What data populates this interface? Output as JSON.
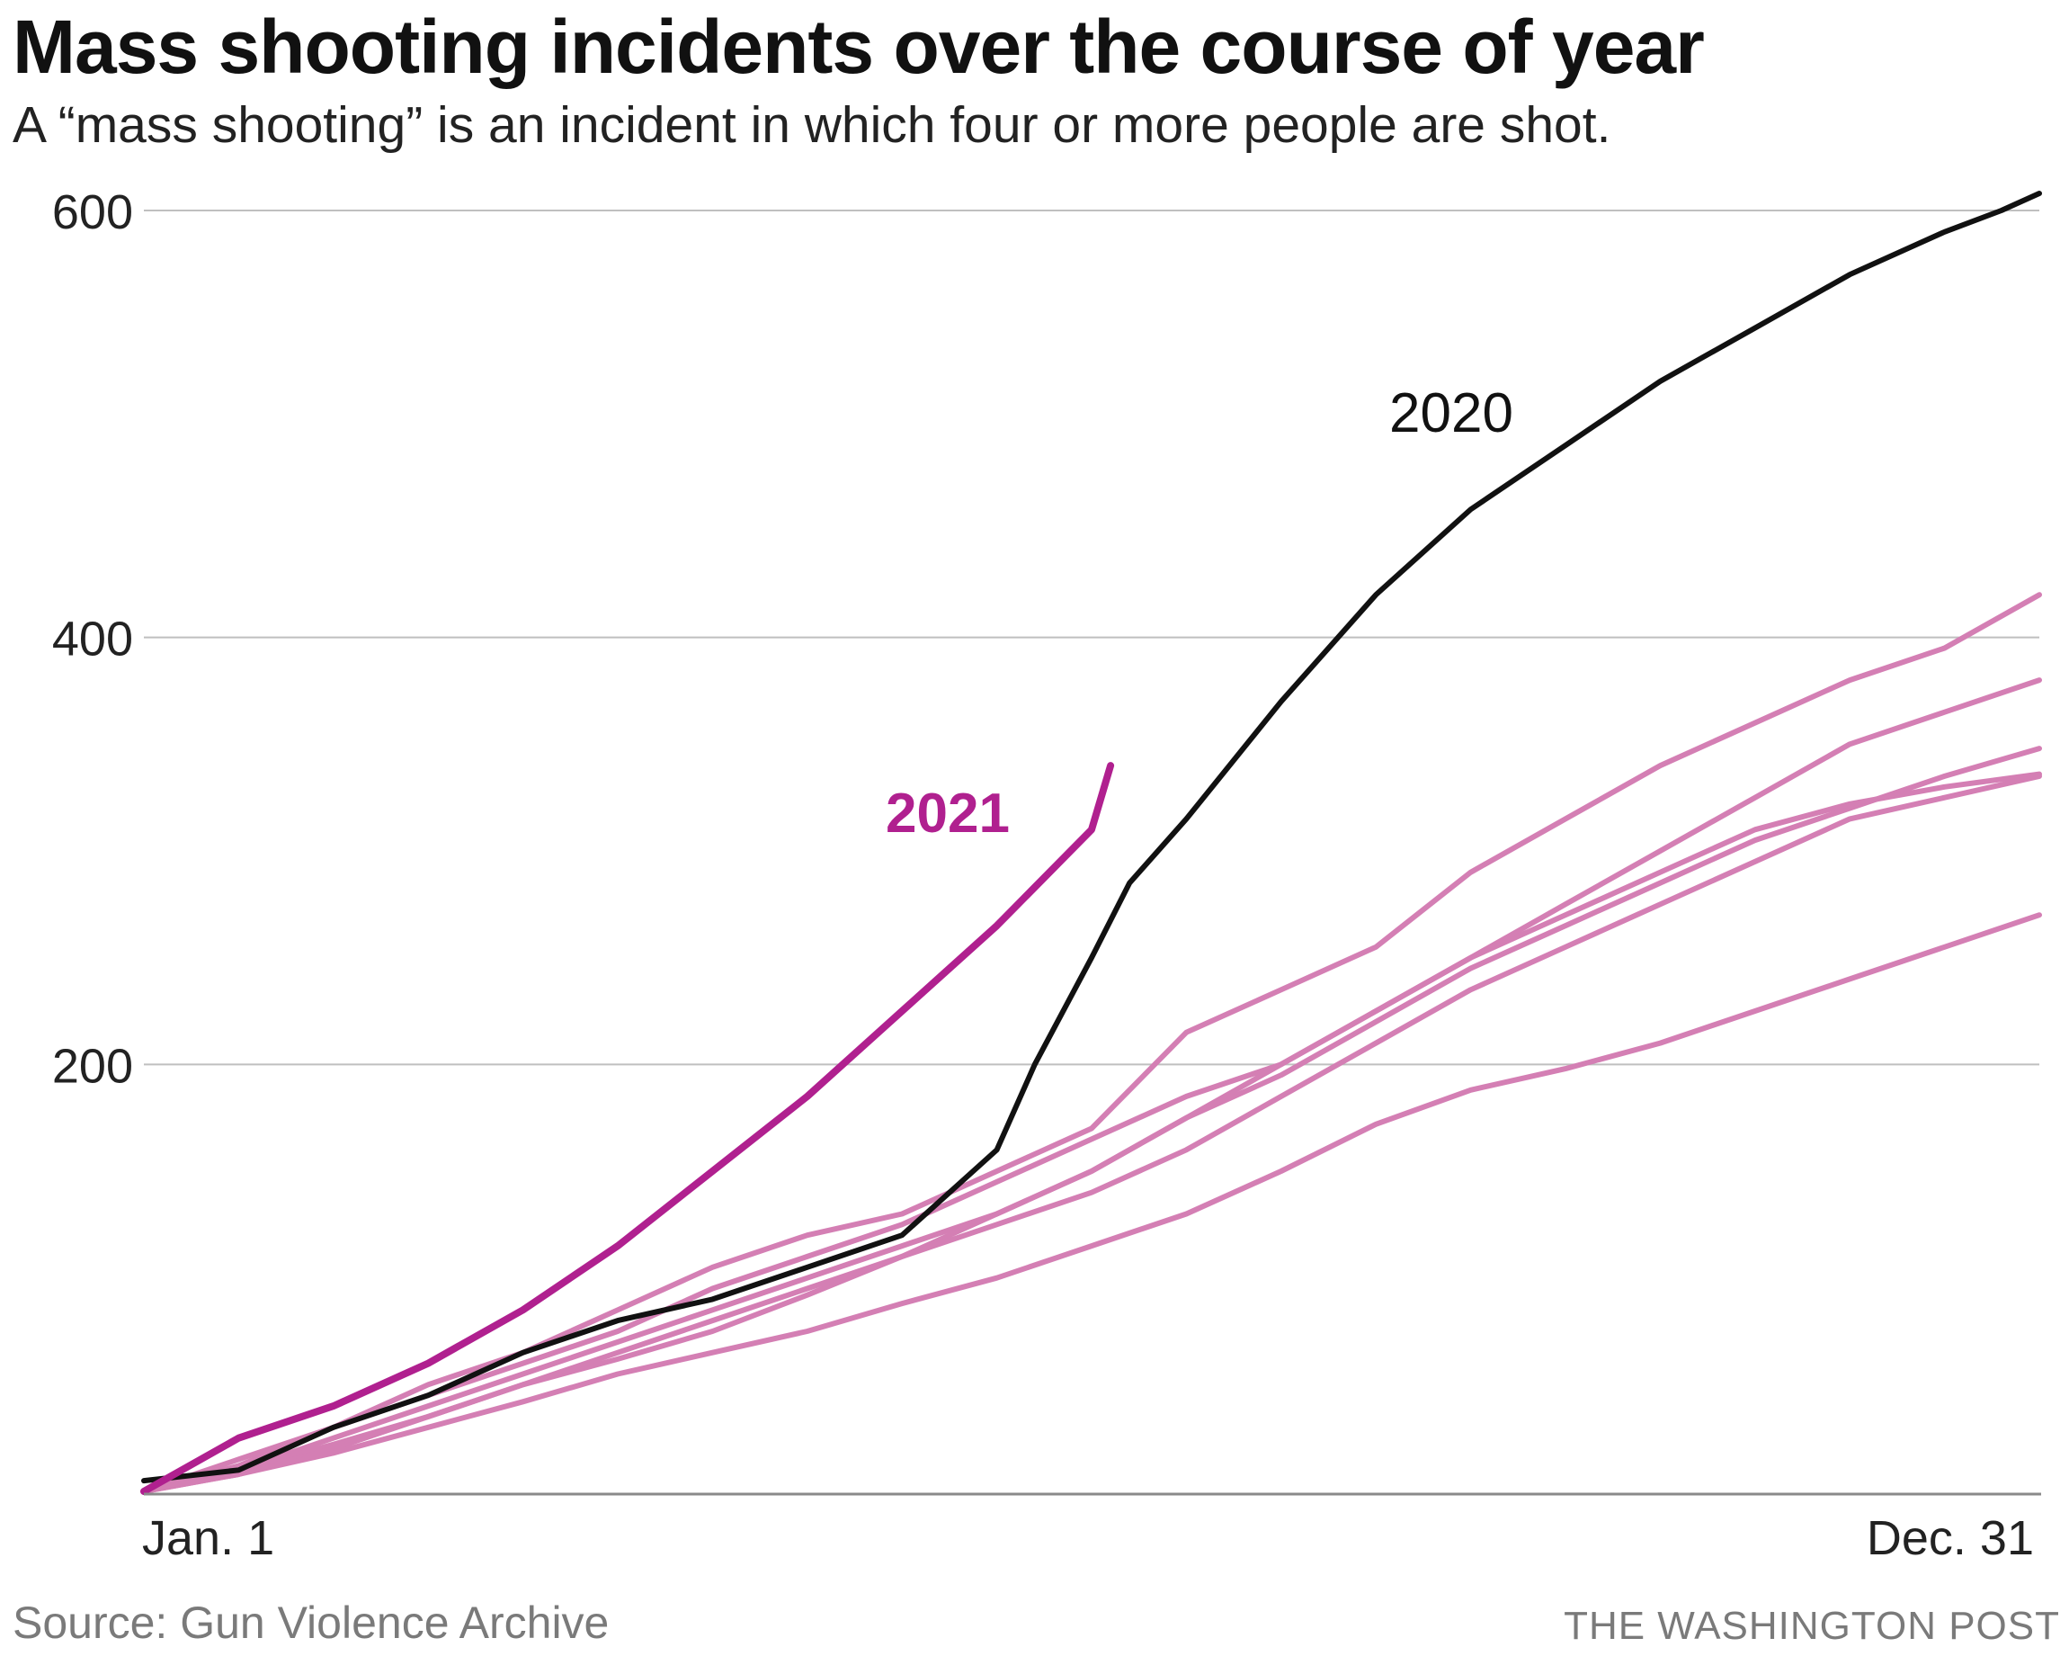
{
  "title": "Mass shooting incidents over the course of year",
  "subtitle": "A “mass shooting” is an incident in which four or more people are shot.",
  "source": "Source: Gun Violence Archive",
  "credit": "THE WASHINGTON POST",
  "colors": {
    "highlight_2021": "#b0208f",
    "year_2020": "#111111",
    "other_years": "#d47fb4",
    "grid": "#bfbfbf",
    "axis": "#8a8a8a"
  },
  "chart_data": {
    "type": "line",
    "xlabel": "",
    "ylabel": "",
    "x_tick_labels": [
      "Jan. 1",
      "Dec. 31"
    ],
    "x_domain": [
      "Jan. 1",
      "Dec. 31"
    ],
    "y_ticks": [
      200,
      400,
      600
    ],
    "ylim": [
      0,
      620
    ],
    "grid": true,
    "legend": "none",
    "annotations": [
      {
        "text": "2020",
        "series": "2020"
      },
      {
        "text": "2021",
        "series": "2021"
      }
    ],
    "series": [
      {
        "name": "2021",
        "style": "highlight",
        "x_fraction": [
          0,
          0.05,
          0.1,
          0.15,
          0.2,
          0.25,
          0.3,
          0.35,
          0.4,
          0.45,
          0.5,
          0.51
        ],
        "values": [
          0,
          25,
          40,
          60,
          85,
          115,
          150,
          185,
          225,
          265,
          310,
          340
        ]
      },
      {
        "name": "2020",
        "style": "dark",
        "x_fraction": [
          0,
          0.05,
          0.1,
          0.15,
          0.2,
          0.25,
          0.3,
          0.35,
          0.4,
          0.45,
          0.47,
          0.5,
          0.52,
          0.55,
          0.6,
          0.65,
          0.7,
          0.75,
          0.8,
          0.85,
          0.9,
          0.95,
          0.98,
          1.0
        ],
        "values": [
          5,
          10,
          30,
          45,
          65,
          80,
          90,
          105,
          120,
          160,
          200,
          250,
          285,
          315,
          370,
          420,
          460,
          490,
          520,
          545,
          570,
          590,
          600,
          608
        ]
      },
      {
        "name": "",
        "style": "other",
        "x_fraction": [
          0,
          0.05,
          0.1,
          0.15,
          0.2,
          0.25,
          0.3,
          0.35,
          0.4,
          0.45,
          0.5,
          0.55,
          0.6,
          0.65,
          0.7,
          0.75,
          0.8,
          0.85,
          0.9,
          0.95,
          1.0
        ],
        "values": [
          0,
          12,
          30,
          50,
          65,
          85,
          105,
          120,
          130,
          150,
          170,
          215,
          235,
          255,
          290,
          315,
          340,
          360,
          380,
          395,
          420
        ]
      },
      {
        "name": "",
        "style": "other",
        "x_fraction": [
          0,
          0.05,
          0.1,
          0.15,
          0.2,
          0.25,
          0.3,
          0.35,
          0.4,
          0.45,
          0.5,
          0.55,
          0.6,
          0.65,
          0.7,
          0.75,
          0.8,
          0.85,
          0.9,
          0.95,
          1.0
        ],
        "values": [
          0,
          15,
          30,
          45,
          60,
          75,
          95,
          110,
          125,
          145,
          165,
          185,
          200,
          225,
          250,
          275,
          300,
          325,
          350,
          365,
          380
        ]
      },
      {
        "name": "",
        "style": "other",
        "x_fraction": [
          0,
          0.05,
          0.1,
          0.15,
          0.2,
          0.25,
          0.3,
          0.35,
          0.4,
          0.45,
          0.5,
          0.55,
          0.6,
          0.65,
          0.7,
          0.75,
          0.8,
          0.85,
          0.9,
          0.95,
          1.0
        ],
        "values": [
          0,
          10,
          25,
          40,
          55,
          70,
          85,
          100,
          115,
          130,
          150,
          175,
          195,
          220,
          245,
          265,
          285,
          305,
          320,
          335,
          348
        ]
      },
      {
        "name": "",
        "style": "other",
        "x_fraction": [
          0,
          0.05,
          0.1,
          0.15,
          0.2,
          0.25,
          0.3,
          0.35,
          0.4,
          0.45,
          0.5,
          0.55,
          0.6,
          0.65,
          0.7,
          0.75,
          0.8,
          0.85,
          0.9,
          0.95,
          1.0
        ],
        "values": [
          0,
          10,
          22,
          35,
          50,
          62,
          75,
          92,
          110,
          130,
          150,
          175,
          200,
          225,
          250,
          270,
          290,
          310,
          322,
          330,
          336
        ]
      },
      {
        "name": "",
        "style": "other",
        "x_fraction": [
          0,
          0.05,
          0.1,
          0.15,
          0.2,
          0.25,
          0.3,
          0.35,
          0.4,
          0.45,
          0.5,
          0.55,
          0.6,
          0.65,
          0.7,
          0.75,
          0.8,
          0.85,
          0.9,
          0.95,
          1.0
        ],
        "values": [
          0,
          8,
          20,
          35,
          50,
          65,
          80,
          95,
          110,
          125,
          140,
          160,
          185,
          210,
          235,
          255,
          275,
          295,
          315,
          325,
          335
        ]
      },
      {
        "name": "",
        "style": "other",
        "x_fraction": [
          0,
          0.05,
          0.1,
          0.15,
          0.2,
          0.25,
          0.3,
          0.35,
          0.4,
          0.45,
          0.5,
          0.55,
          0.6,
          0.65,
          0.7,
          0.75,
          0.8,
          0.85,
          0.9,
          0.95,
          1.0
        ],
        "values": [
          0,
          8,
          18,
          30,
          42,
          55,
          65,
          75,
          88,
          100,
          115,
          130,
          150,
          172,
          188,
          198,
          210,
          225,
          240,
          255,
          270
        ]
      }
    ]
  }
}
